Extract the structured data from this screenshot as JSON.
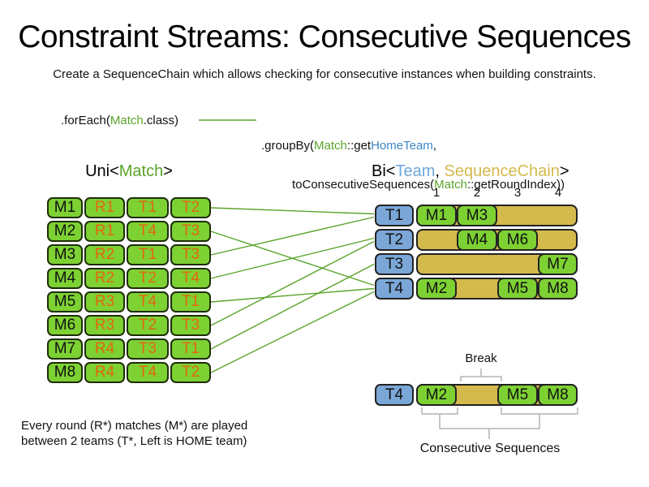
{
  "title": "Constraint Streams: Consecutive Sequences",
  "subtitle": "Create a SequenceChain which allows checking for consecutive instances when building constraints.",
  "code": {
    "foreach_pre": ".forEach(",
    "foreach_match": "Match",
    "foreach_post": ".class)",
    "groupby_pre": ".groupBy(",
    "groupby_match": "Match",
    "groupby_mid": "::get",
    "groupby_hometeam": "HomeTeam",
    "groupby_comma": ",",
    "line2_pre": "toConsecutiveSequences(",
    "line2_match": "Match",
    "line2_post": "::getRoundIndex))"
  },
  "labels": {
    "uni_pre": "Uni<",
    "uni_match": "Match",
    "uni_post": ">",
    "bi_pre": "Bi<",
    "bi_team": "Team",
    "bi_comma": ", ",
    "bi_chain": "SequenceChain",
    "bi_post": ">"
  },
  "uni_table": {
    "rows": [
      {
        "match": "M1",
        "round": "R1",
        "home": "T1",
        "away": "T2"
      },
      {
        "match": "M2",
        "round": "R1",
        "home": "T4",
        "away": "T3"
      },
      {
        "match": "M3",
        "round": "R2",
        "home": "T1",
        "away": "T3"
      },
      {
        "match": "M4",
        "round": "R2",
        "home": "T2",
        "away": "T4"
      },
      {
        "match": "M5",
        "round": "R3",
        "home": "T4",
        "away": "T1"
      },
      {
        "match": "M6",
        "round": "R3",
        "home": "T2",
        "away": "T3"
      },
      {
        "match": "M7",
        "round": "R4",
        "home": "T3",
        "away": "T1"
      },
      {
        "match": "M8",
        "round": "R4",
        "home": "T4",
        "away": "T2"
      }
    ]
  },
  "bi_grid": {
    "round_headers": [
      "1",
      "2",
      "3",
      "4"
    ],
    "rows": [
      {
        "team": "T1",
        "blocks": [
          {
            "label": "M1",
            "col": 1
          },
          {
            "label": "M3",
            "col": 2
          }
        ]
      },
      {
        "team": "T2",
        "blocks": [
          {
            "label": "M4",
            "col": 2
          },
          {
            "label": "M6",
            "col": 3
          }
        ]
      },
      {
        "team": "T3",
        "blocks": [
          {
            "label": "M7",
            "col": 4
          }
        ]
      },
      {
        "team": "T4",
        "blocks": [
          {
            "label": "M2",
            "col": 1
          },
          {
            "label": "M5",
            "col": 3
          },
          {
            "label": "M8",
            "col": 4
          }
        ]
      }
    ]
  },
  "detail": {
    "team": "T4",
    "blocks": [
      {
        "label": "M2",
        "col": 1
      },
      {
        "label": "M5",
        "col": 3
      },
      {
        "label": "M8",
        "col": 4
      }
    ],
    "break_label": "Break",
    "break_col": 2,
    "sequences_label": "Consecutive Sequences"
  },
  "footnote": {
    "line1": "Every round (R*) matches (M*) are played",
    "line2": "between 2 teams (T*, Left is HOME team)"
  },
  "colors": {
    "green_fill": "#7dd133",
    "blue_fill": "#7ba7d8",
    "tan_fill": "#d4b94c",
    "border": "#222222",
    "green_border": "#1e2d08",
    "orange_text": "#e2680f",
    "green_text": "#5aa42b",
    "blue_text": "#3d85c6",
    "team_blue_text": "#6fa8dc",
    "tan_text": "#d4b94c",
    "line_green": "#5aa42b",
    "bracket_gray": "#b3b3b3"
  }
}
